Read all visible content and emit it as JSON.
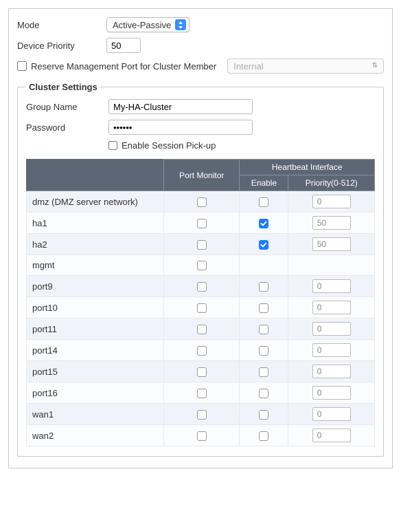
{
  "labels": {
    "mode": "Mode",
    "device_priority": "Device Priority",
    "reserve_mgmt": "Reserve Management Port for Cluster Member",
    "cluster_settings": "Cluster Settings",
    "group_name": "Group Name",
    "password": "Password",
    "enable_session_pickup": "Enable Session Pick-up"
  },
  "mode_select": {
    "value": "Active-Passive"
  },
  "device_priority": "50",
  "reserve_mgmt_checked": false,
  "mgmt_port_select": {
    "value": "Internal",
    "disabled": true
  },
  "cluster": {
    "group_name": "My-HA-Cluster",
    "password_masked": "••••••",
    "enable_session_pickup": false
  },
  "table": {
    "headers": {
      "port_monitor": "Port Monitor",
      "heartbeat_interface": "Heartbeat Interface",
      "enable": "Enable",
      "priority": "Priority(0-512)"
    },
    "header_bg": "#5d6675",
    "header_fg": "#ffffff",
    "row_bg_a": "#f0f4fa",
    "row_bg_b": "#fbfcfe",
    "rows": [
      {
        "name": "dmz (DMZ server network)",
        "port_monitor": false,
        "hb_enable": false,
        "hb_priority": "0"
      },
      {
        "name": "ha1",
        "port_monitor": false,
        "hb_enable": true,
        "hb_priority": "50"
      },
      {
        "name": "ha2",
        "port_monitor": false,
        "hb_enable": true,
        "hb_priority": "50"
      },
      {
        "name": "mgmt",
        "port_monitor": false,
        "hb_enable": null,
        "hb_priority": null
      },
      {
        "name": "port9",
        "port_monitor": false,
        "hb_enable": false,
        "hb_priority": "0"
      },
      {
        "name": "port10",
        "port_monitor": false,
        "hb_enable": false,
        "hb_priority": "0"
      },
      {
        "name": "port11",
        "port_monitor": false,
        "hb_enable": false,
        "hb_priority": "0"
      },
      {
        "name": "port14",
        "port_monitor": false,
        "hb_enable": false,
        "hb_priority": "0"
      },
      {
        "name": "port15",
        "port_monitor": false,
        "hb_enable": false,
        "hb_priority": "0"
      },
      {
        "name": "port16",
        "port_monitor": false,
        "hb_enable": false,
        "hb_priority": "0"
      },
      {
        "name": "wan1",
        "port_monitor": false,
        "hb_enable": false,
        "hb_priority": "0"
      },
      {
        "name": "wan2",
        "port_monitor": false,
        "hb_enable": false,
        "hb_priority": "0"
      }
    ]
  },
  "colors": {
    "accent_blue": "#1f7cff",
    "border": "#c8c8c8"
  }
}
